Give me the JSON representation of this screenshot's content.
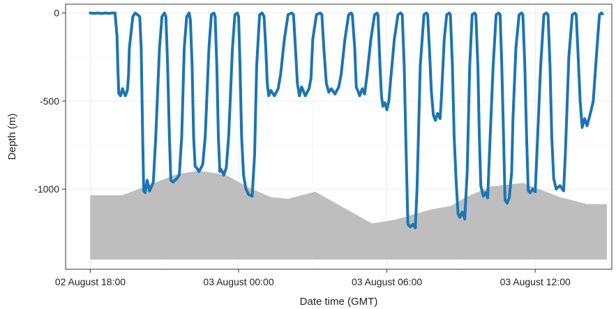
{
  "chart_data": {
    "type": "line",
    "xlabel": "Date time (GMT)",
    "ylabel": "Depth (m)",
    "x_unit": "hours relative to 02 August 18:00 GMT",
    "xlim": [
      -1.0,
      21.1
    ],
    "ylim": [
      -1455,
      50
    ],
    "x_ticks": [
      {
        "value": 0,
        "label": "02 August 18:00"
      },
      {
        "value": 6,
        "label": "03 August 00:00"
      },
      {
        "value": 12,
        "label": "03 August 06:00"
      },
      {
        "value": 18,
        "label": "03 August 12:00"
      }
    ],
    "y_ticks": [
      {
        "value": 0,
        "label": "0"
      },
      {
        "value": -500,
        "label": "-500"
      },
      {
        "value": -1000,
        "label": "-1000"
      }
    ],
    "grid": true,
    "colors": {
      "series": "#1b75b3",
      "seabed": "#bebebe",
      "grid": "#ebebeb",
      "axis": "#333333"
    },
    "seabed": {
      "bottom": -1400,
      "x": [
        0.0,
        1.3,
        3.5,
        4.4,
        5.5,
        6.4,
        7.3,
        8.0,
        9.1,
        11.4,
        12.3,
        13.8,
        14.6,
        15.2,
        16.2,
        17.5,
        19.0,
        20.1,
        20.9
      ],
      "y": [
        -1035,
        -1035,
        -915,
        -895,
        -920,
        -990,
        -1045,
        -1055,
        -1015,
        -1195,
        -1175,
        -1115,
        -1095,
        -1045,
        -985,
        -965,
        -1045,
        -1085,
        -1085
      ]
    },
    "series": [
      {
        "x": [
          0.0,
          0.15,
          0.3,
          0.45,
          0.6,
          0.75,
          0.9,
          1.0,
          1.08,
          1.12,
          1.15,
          1.22,
          1.3,
          1.42,
          1.5,
          1.55,
          1.58,
          1.72,
          1.82,
          2.0,
          2.06,
          2.12,
          2.16,
          2.22,
          2.3,
          2.4,
          2.55,
          2.65,
          2.8,
          2.9,
          3.0,
          3.06,
          3.13,
          3.2,
          3.26,
          3.35,
          3.5,
          3.6,
          3.7,
          3.8,
          3.9,
          4.0,
          4.05,
          4.12,
          4.18,
          4.24,
          4.3,
          4.4,
          4.55,
          4.65,
          4.8,
          4.9,
          5.0,
          5.05,
          5.12,
          5.18,
          5.24,
          5.3,
          5.4,
          5.5,
          5.6,
          5.75,
          5.85,
          5.95,
          6.0,
          6.06,
          6.12,
          6.2,
          6.3,
          6.4,
          6.55,
          6.65,
          6.73,
          6.85,
          6.95,
          7.03,
          7.1,
          7.16,
          7.22,
          7.3,
          7.45,
          7.6,
          7.7,
          7.85,
          8.0,
          8.15,
          8.22,
          8.3,
          8.38,
          8.46,
          8.55,
          8.7,
          8.85,
          8.93,
          9.0,
          9.15,
          9.3,
          9.37,
          9.45,
          9.55,
          9.65,
          9.75,
          9.9,
          10.05,
          10.15,
          10.3,
          10.45,
          10.55,
          10.6,
          10.7,
          10.76,
          10.82,
          10.9,
          11.0,
          11.1,
          11.2,
          11.35,
          11.5,
          11.6,
          11.64,
          11.72,
          11.78,
          11.84,
          11.92,
          12.0,
          12.08,
          12.14,
          12.3,
          12.45,
          12.55,
          12.62,
          12.7,
          12.78,
          12.85,
          12.95,
          13.05,
          13.15,
          13.22,
          13.35,
          13.5,
          13.6,
          13.65,
          13.72,
          13.8,
          13.88,
          13.96,
          14.05,
          14.15,
          14.2,
          14.32,
          14.42,
          14.52,
          14.57,
          14.65,
          14.72,
          14.8,
          14.88,
          14.95,
          15.05,
          15.15,
          15.25,
          15.35,
          15.45,
          15.55,
          15.6,
          15.68,
          15.74,
          15.8,
          15.9,
          16.0,
          16.08,
          16.15,
          16.3,
          16.42,
          16.52,
          16.58,
          16.65,
          16.72,
          16.78,
          16.86,
          16.95,
          17.05,
          17.1,
          17.22,
          17.35,
          17.45,
          17.5,
          17.58,
          17.65,
          17.72,
          17.8,
          17.9,
          18.0,
          18.07,
          18.22,
          18.35,
          18.45,
          18.52,
          18.6,
          18.67,
          18.75,
          18.85,
          19.0,
          19.15,
          19.22,
          19.36,
          19.5,
          19.6,
          19.66,
          19.74,
          19.82,
          19.9,
          20.0,
          20.1,
          20.25,
          20.35,
          20.5,
          20.6,
          20.68,
          20.72
        ],
        "y": [
          0,
          -2,
          0,
          -3,
          0,
          -2,
          0,
          0,
          -130,
          -330,
          -455,
          -470,
          -430,
          -470,
          -440,
          -350,
          -200,
          -20,
          0,
          -20,
          -200,
          -700,
          -1010,
          -1020,
          -950,
          -1010,
          -960,
          -700,
          -200,
          -20,
          0,
          -20,
          -300,
          -700,
          -950,
          -960,
          -940,
          -920,
          -700,
          -200,
          -20,
          0,
          -40,
          -300,
          -700,
          -870,
          -880,
          -900,
          -860,
          -700,
          -200,
          -10,
          0,
          -20,
          -300,
          -700,
          -900,
          -890,
          -920,
          -880,
          -700,
          -200,
          -10,
          0,
          -20,
          -300,
          -700,
          -920,
          -1000,
          -1030,
          -1040,
          -800,
          -300,
          -10,
          0,
          -20,
          -200,
          -400,
          -470,
          -440,
          -470,
          -430,
          -350,
          -150,
          -10,
          0,
          -10,
          -200,
          -400,
          -470,
          -420,
          -470,
          -430,
          -370,
          -150,
          -10,
          0,
          -10,
          -200,
          -400,
          -450,
          -430,
          -460,
          -420,
          -350,
          -150,
          -10,
          0,
          -10,
          -200,
          -420,
          -440,
          -470,
          -430,
          -460,
          -350,
          -150,
          -10,
          0,
          -10,
          -300,
          -470,
          -530,
          -510,
          -550,
          -500,
          -400,
          -150,
          -10,
          0,
          -10,
          -300,
          -800,
          -1200,
          -1215,
          -1200,
          -1220,
          -1000,
          -300,
          -10,
          0,
          -10,
          -200,
          -450,
          -580,
          -610,
          -570,
          -600,
          -500,
          -150,
          -10,
          0,
          -10,
          -300,
          -700,
          -950,
          -1140,
          -1160,
          -1130,
          -1170,
          -900,
          -300,
          -10,
          0,
          -10,
          -300,
          -700,
          -980,
          -1040,
          -1020,
          -1050,
          -800,
          -300,
          -10,
          0,
          -10,
          -300,
          -700,
          -1060,
          -1080,
          -1050,
          -900,
          -600,
          -200,
          -10,
          0,
          -10,
          -300,
          -700,
          -1010,
          -1020,
          -1000,
          -1015,
          -800,
          -300,
          -10,
          0,
          -10,
          -300,
          -700,
          -940,
          -1000,
          -980,
          -1010,
          -800,
          -250,
          -10,
          0,
          -10,
          -250,
          -500,
          -650,
          -600,
          -640,
          -560,
          -500,
          -200,
          -10,
          0,
          -5
        ]
      }
    ]
  }
}
